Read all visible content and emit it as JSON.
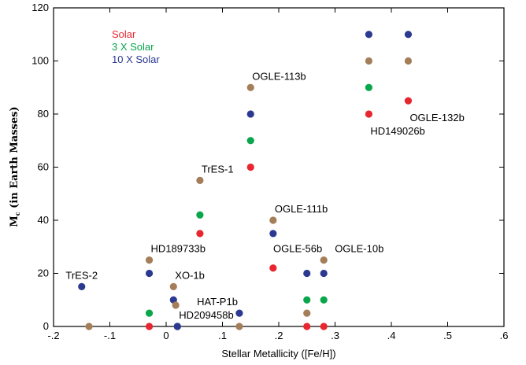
{
  "chart_data": {
    "type": "scatter",
    "xlabel": "Stellar Metallicity ([Fe/H])",
    "ylabel_main": "M",
    "ylabel_sub": "c",
    "ylabel_rest": " (in Earth Masses)",
    "xlim": [
      -0.2,
      0.6
    ],
    "ylim": [
      0,
      120
    ],
    "x_ticks": [
      -0.2,
      -0.1,
      0,
      0.1,
      0.2,
      0.3,
      0.4,
      0.5,
      0.6
    ],
    "x_tick_labels": [
      "-.2",
      "-.1",
      "0",
      ".1",
      ".2",
      ".3",
      ".4",
      ".5",
      ".6"
    ],
    "y_ticks": [
      0,
      20,
      40,
      60,
      80,
      100,
      120
    ],
    "y_tick_labels": [
      "0",
      "20",
      "40",
      "60",
      "80",
      "100",
      "120"
    ],
    "grid": false,
    "legend_position": "top-left",
    "series": [
      {
        "name": "Solar",
        "color": "#e8262f",
        "points": [
          {
            "x": -0.03,
            "y": 0
          },
          {
            "x": 0.02,
            "y": 0
          },
          {
            "x": 0.06,
            "y": 35
          },
          {
            "x": 0.15,
            "y": 60
          },
          {
            "x": 0.19,
            "y": 22
          },
          {
            "x": 0.25,
            "y": 0
          },
          {
            "x": 0.28,
            "y": 0
          },
          {
            "x": 0.36,
            "y": 80
          },
          {
            "x": 0.43,
            "y": 85
          }
        ]
      },
      {
        "name": "3 X Solar",
        "color": "#0aa64b",
        "points": [
          {
            "x": -0.03,
            "y": 5
          },
          {
            "x": 0.02,
            "y": 0
          },
          {
            "x": 0.06,
            "y": 42
          },
          {
            "x": 0.15,
            "y": 70
          },
          {
            "x": 0.25,
            "y": 10
          },
          {
            "x": 0.28,
            "y": 10
          },
          {
            "x": 0.36,
            "y": 90
          }
        ]
      },
      {
        "name": "10 X Solar",
        "color": "#2b3990",
        "points": [
          {
            "x": -0.15,
            "y": 15
          },
          {
            "x": -0.03,
            "y": 20
          },
          {
            "x": 0.013,
            "y": 10
          },
          {
            "x": 0.02,
            "y": 0
          },
          {
            "x": 0.13,
            "y": 5
          },
          {
            "x": 0.15,
            "y": 80
          },
          {
            "x": 0.19,
            "y": 35
          },
          {
            "x": 0.25,
            "y": 20
          },
          {
            "x": 0.28,
            "y": 20
          },
          {
            "x": 0.36,
            "y": 110
          },
          {
            "x": 0.43,
            "y": 110
          }
        ]
      },
      {
        "name": "",
        "color": "#a47e58",
        "points": [
          {
            "x": -0.137,
            "y": 0
          },
          {
            "x": -0.03,
            "y": 25
          },
          {
            "x": 0.013,
            "y": 15
          },
          {
            "x": 0.017,
            "y": 8
          },
          {
            "x": 0.06,
            "y": 55
          },
          {
            "x": 0.15,
            "y": 90
          },
          {
            "x": 0.13,
            "y": 0
          },
          {
            "x": 0.19,
            "y": 40
          },
          {
            "x": 0.25,
            "y": 5
          },
          {
            "x": 0.28,
            "y": 25
          },
          {
            "x": 0.36,
            "y": 100
          },
          {
            "x": 0.43,
            "y": 100
          }
        ]
      }
    ],
    "annotations": [
      {
        "text": "TrES-2",
        "x": -0.15,
        "y": 15,
        "anchor": "above"
      },
      {
        "text": "HD189733b",
        "x": -0.03,
        "y": 25,
        "anchor": "above-right"
      },
      {
        "text": "XO-1b",
        "x": 0.013,
        "y": 15,
        "anchor": "above-right"
      },
      {
        "text": "HD209458b",
        "x": 0.02,
        "y": 0,
        "anchor": "above-right"
      },
      {
        "text": "TrES-1",
        "x": 0.06,
        "y": 55,
        "anchor": "above-right"
      },
      {
        "text": "OGLE-113b",
        "x": 0.15,
        "y": 90,
        "anchor": "above-right"
      },
      {
        "text": "HAT-P1b",
        "x": 0.13,
        "y": 5,
        "anchor": "above-left"
      },
      {
        "text": "OGLE-111b",
        "x": 0.19,
        "y": 40,
        "anchor": "above-right"
      },
      {
        "text": "OGLE-56b",
        "x": 0.28,
        "y": 25,
        "anchor": "above-left"
      },
      {
        "text": "OGLE-10b",
        "x": 0.28,
        "y": 25,
        "anchor": "right"
      },
      {
        "text": "HD149026b",
        "x": 0.36,
        "y": 80,
        "anchor": "below-right"
      },
      {
        "text": "OGLE-132b",
        "x": 0.43,
        "y": 85,
        "anchor": "below-right"
      }
    ]
  }
}
